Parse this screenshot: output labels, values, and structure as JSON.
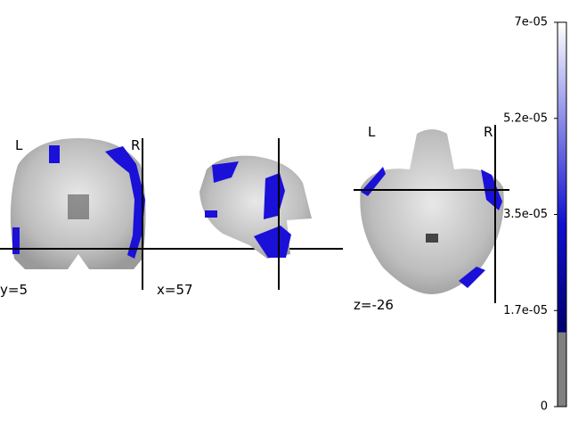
{
  "views": [
    {
      "cut": "y=5",
      "left": "L",
      "right": "R"
    },
    {
      "cut": "x=57"
    },
    {
      "cut": "z=-26",
      "left": "L",
      "right": "R"
    }
  ],
  "colorbar": {
    "lim": [
      0,
      7e-05
    ],
    "threshold": 1.35e-05,
    "ticks": [
      0,
      {
        "value": 1.75e-05,
        "label": "1.7e-05"
      },
      {
        "value": 3.5e-05,
        "label": "3.5e-05"
      },
      {
        "value": 5.25e-05,
        "label": "5.2e-05"
      },
      {
        "value": 7e-05,
        "label": "7e-05"
      }
    ]
  }
}
